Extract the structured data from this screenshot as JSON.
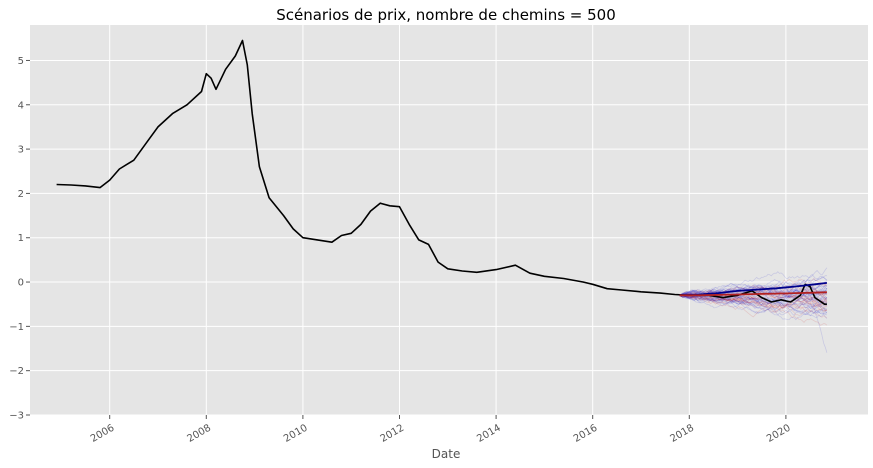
{
  "chart_data": {
    "type": "line",
    "title": "Scénarios de prix, nombre de chemins = 500",
    "xlabel": "Date",
    "ylabel": "",
    "xlim": [
      2004.35,
      2021.7
    ],
    "ylim": [
      -3.0,
      5.8
    ],
    "x_ticks": [
      "2006",
      "2008",
      "2010",
      "2012",
      "2014",
      "2016",
      "2018",
      "2020"
    ],
    "y_ticks": [
      "5",
      "4",
      "3",
      "2",
      "1",
      "0",
      "−1",
      "−2",
      "−3"
    ],
    "grid": true,
    "legend": "none",
    "colors": {
      "background": "#e5e5e5",
      "grid": "#ffffff",
      "history": "#000000",
      "scenario_blue": "#0000cc",
      "scenario_red": "#cc0000",
      "median": "#00008b",
      "mean": "#b22222"
    },
    "series": [
      {
        "values": [
          [
            2004.9,
            2.2
          ],
          [
            2005.2,
            2.19
          ],
          [
            2005.5,
            2.17
          ],
          [
            2005.8,
            2.13
          ],
          [
            2006.0,
            2.3
          ],
          [
            2006.2,
            2.55
          ],
          [
            2006.5,
            2.75
          ],
          [
            2006.8,
            3.2
          ],
          [
            2007.0,
            3.5
          ],
          [
            2007.3,
            3.8
          ],
          [
            2007.6,
            4.0
          ],
          [
            2007.9,
            4.3
          ],
          [
            2008.0,
            4.7
          ],
          [
            2008.1,
            4.6
          ],
          [
            2008.2,
            4.35
          ],
          [
            2008.4,
            4.8
          ],
          [
            2008.6,
            5.1
          ],
          [
            2008.75,
            5.45
          ],
          [
            2008.85,
            4.9
          ],
          [
            2008.95,
            3.8
          ],
          [
            2009.1,
            2.6
          ],
          [
            2009.3,
            1.9
          ],
          [
            2009.6,
            1.5
          ],
          [
            2009.8,
            1.2
          ],
          [
            2010.0,
            1.0
          ],
          [
            2010.3,
            0.95
          ],
          [
            2010.6,
            0.9
          ],
          [
            2010.8,
            1.05
          ],
          [
            2011.0,
            1.1
          ],
          [
            2011.2,
            1.3
          ],
          [
            2011.4,
            1.6
          ],
          [
            2011.6,
            1.78
          ],
          [
            2011.8,
            1.72
          ],
          [
            2012.0,
            1.7
          ],
          [
            2012.2,
            1.3
          ],
          [
            2012.4,
            0.95
          ],
          [
            2012.6,
            0.85
          ],
          [
            2012.8,
            0.45
          ],
          [
            2013.0,
            0.3
          ],
          [
            2013.3,
            0.25
          ],
          [
            2013.6,
            0.22
          ],
          [
            2014.0,
            0.28
          ],
          [
            2014.4,
            0.38
          ],
          [
            2014.7,
            0.2
          ],
          [
            2015.0,
            0.13
          ],
          [
            2015.4,
            0.08
          ],
          [
            2015.8,
            0.0
          ],
          [
            2016.0,
            -0.05
          ],
          [
            2016.3,
            -0.15
          ],
          [
            2016.6,
            -0.18
          ],
          [
            2017.0,
            -0.22
          ],
          [
            2017.4,
            -0.25
          ],
          [
            2017.7,
            -0.28
          ],
          [
            2018.0,
            -0.3
          ],
          [
            2018.4,
            -0.3
          ],
          [
            2018.7,
            -0.35
          ],
          [
            2019.0,
            -0.3
          ],
          [
            2019.3,
            -0.2
          ],
          [
            2019.5,
            -0.35
          ],
          [
            2019.7,
            -0.45
          ],
          [
            2019.9,
            -0.4
          ],
          [
            2020.1,
            -0.45
          ],
          [
            2020.3,
            -0.3
          ],
          [
            2020.4,
            -0.05
          ],
          [
            2020.5,
            -0.1
          ],
          [
            2020.6,
            -0.35
          ],
          [
            2020.8,
            -0.5
          ],
          [
            2020.85,
            -0.5
          ]
        ]
      },
      {
        "values": [
          [
            2017.8,
            -0.3
          ],
          [
            2018.2,
            -0.28
          ],
          [
            2018.6,
            -0.25
          ],
          [
            2019.0,
            -0.2
          ],
          [
            2019.4,
            -0.17
          ],
          [
            2019.8,
            -0.14
          ],
          [
            2020.2,
            -0.1
          ],
          [
            2020.6,
            -0.05
          ],
          [
            2020.85,
            -0.02
          ]
        ]
      },
      {
        "values": [
          [
            2017.8,
            -0.3
          ],
          [
            2018.2,
            -0.3
          ],
          [
            2018.6,
            -0.29
          ],
          [
            2019.0,
            -0.28
          ],
          [
            2019.4,
            -0.27
          ],
          [
            2019.8,
            -0.26
          ],
          [
            2020.2,
            -0.25
          ],
          [
            2020.6,
            -0.24
          ],
          [
            2020.85,
            -0.23
          ]
        ]
      }
    ]
  }
}
